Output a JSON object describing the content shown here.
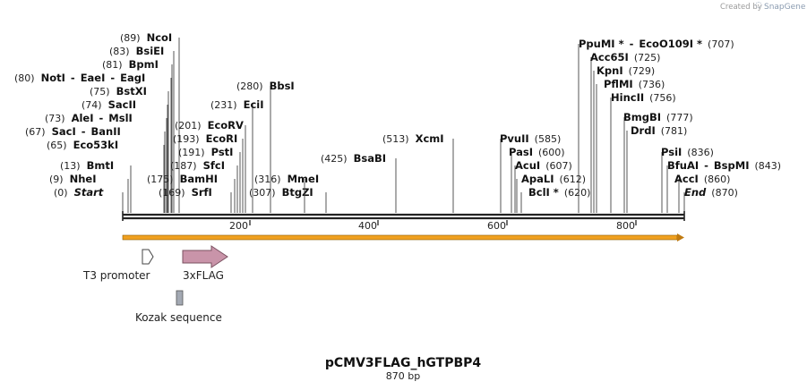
{
  "credit": {
    "prefix": "Created by",
    "brand": "SnapGene"
  },
  "map": {
    "name": "pCMV3FLAG_hGTPBP4",
    "length_label": "870 bp",
    "length_bp": 870
  },
  "axis": {
    "ticks": [
      "200",
      "400",
      "600",
      "800"
    ]
  },
  "sites": [
    {
      "id": "start",
      "pos": "(0)",
      "names": [
        "Start"
      ],
      "italic": true
    },
    {
      "id": "nhei",
      "pos": "(9)",
      "names": [
        "NheI"
      ]
    },
    {
      "id": "bmti",
      "pos": "(13)",
      "names": [
        "BmtI"
      ]
    },
    {
      "id": "eco53ki",
      "pos": "(65)",
      "names": [
        "Eco53kI"
      ]
    },
    {
      "id": "saci",
      "pos": "(67)",
      "names": [
        "SacI",
        "BanII"
      ]
    },
    {
      "id": "alei",
      "pos": "(73)",
      "names": [
        "AleI",
        "MslI"
      ]
    },
    {
      "id": "sacii",
      "pos": "(74)",
      "names": [
        "SacII"
      ]
    },
    {
      "id": "bstxi",
      "pos": "(75)",
      "names": [
        "BstXI"
      ]
    },
    {
      "id": "noti",
      "pos": "(80)",
      "names": [
        "NotI",
        "EaeI",
        "EagI"
      ]
    },
    {
      "id": "bpmi",
      "pos": "(81)",
      "names": [
        "BpmI"
      ]
    },
    {
      "id": "bsiei",
      "pos": "(83)",
      "names": [
        "BsiEI"
      ]
    },
    {
      "id": "ncoi",
      "pos": "(89)",
      "names": [
        "NcoI"
      ]
    },
    {
      "id": "srfi",
      "pos": "(169)",
      "names": [
        "SrfI"
      ]
    },
    {
      "id": "bamhi",
      "pos": "(175)",
      "names": [
        "BamHI"
      ]
    },
    {
      "id": "sfci",
      "pos": "(187)",
      "names": [
        "SfcI"
      ]
    },
    {
      "id": "psti",
      "pos": "(191)",
      "names": [
        "PstI"
      ]
    },
    {
      "id": "ecori",
      "pos": "(193)",
      "names": [
        "EcoRI"
      ]
    },
    {
      "id": "ecorv",
      "pos": "(201)",
      "names": [
        "EcoRV"
      ]
    },
    {
      "id": "ecii",
      "pos": "(231)",
      "names": [
        "EciI"
      ]
    },
    {
      "id": "bbsi",
      "pos": "(280)",
      "names": [
        "BbsI"
      ]
    },
    {
      "id": "btgzi",
      "pos": "(307)",
      "names": [
        "BtgZI"
      ]
    },
    {
      "id": "mmei",
      "pos": "(316)",
      "names": [
        "MmeI"
      ]
    },
    {
      "id": "bsabi",
      "pos": "(425)",
      "names": [
        "BsaBI"
      ]
    },
    {
      "id": "xcmi",
      "pos": "(513)",
      "names": [
        "XcmI"
      ]
    },
    {
      "id": "pvuii",
      "pos": "(585)",
      "names": [
        "PvuII"
      ]
    },
    {
      "id": "pasi",
      "pos": "(600)",
      "names": [
        "PasI"
      ]
    },
    {
      "id": "acui",
      "pos": "(607)",
      "names": [
        "AcuI"
      ]
    },
    {
      "id": "apali",
      "pos": "(612)",
      "names": [
        "ApaLI"
      ]
    },
    {
      "id": "bcli",
      "pos": "(620)",
      "names": [
        "BclI *"
      ]
    },
    {
      "id": "ppumi",
      "pos": "(707)",
      "names": [
        "PpuMI *",
        "EcoO109I *"
      ]
    },
    {
      "id": "acc65i",
      "pos": "(725)",
      "names": [
        "Acc65I"
      ]
    },
    {
      "id": "kpni",
      "pos": "(729)",
      "names": [
        "KpnI"
      ]
    },
    {
      "id": "pflmi",
      "pos": "(736)",
      "names": [
        "PflMI"
      ]
    },
    {
      "id": "hincii",
      "pos": "(756)",
      "names": [
        "HincII"
      ]
    },
    {
      "id": "bmgbi",
      "pos": "(777)",
      "names": [
        "BmgBI"
      ]
    },
    {
      "id": "drdi",
      "pos": "(781)",
      "names": [
        "DrdI"
      ]
    },
    {
      "id": "psii",
      "pos": "(836)",
      "names": [
        "PsiI"
      ]
    },
    {
      "id": "bfuai",
      "pos": "(843)",
      "names": [
        "BfuAI",
        "BspMI"
      ]
    },
    {
      "id": "acci",
      "pos": "(860)",
      "names": [
        "AccI"
      ]
    },
    {
      "id": "end",
      "pos": "(870)",
      "names": [
        "End"
      ],
      "italic": true
    }
  ],
  "features": [
    {
      "id": "t3",
      "label": "T3 promoter"
    },
    {
      "id": "flag",
      "label": "3xFLAG"
    },
    {
      "id": "kozak",
      "label": "Kozak sequence"
    }
  ],
  "colors": {
    "orf": "#f0a020",
    "flag": "#c994a9",
    "kozak": "#a3a9b3",
    "backbone": "#222222"
  }
}
